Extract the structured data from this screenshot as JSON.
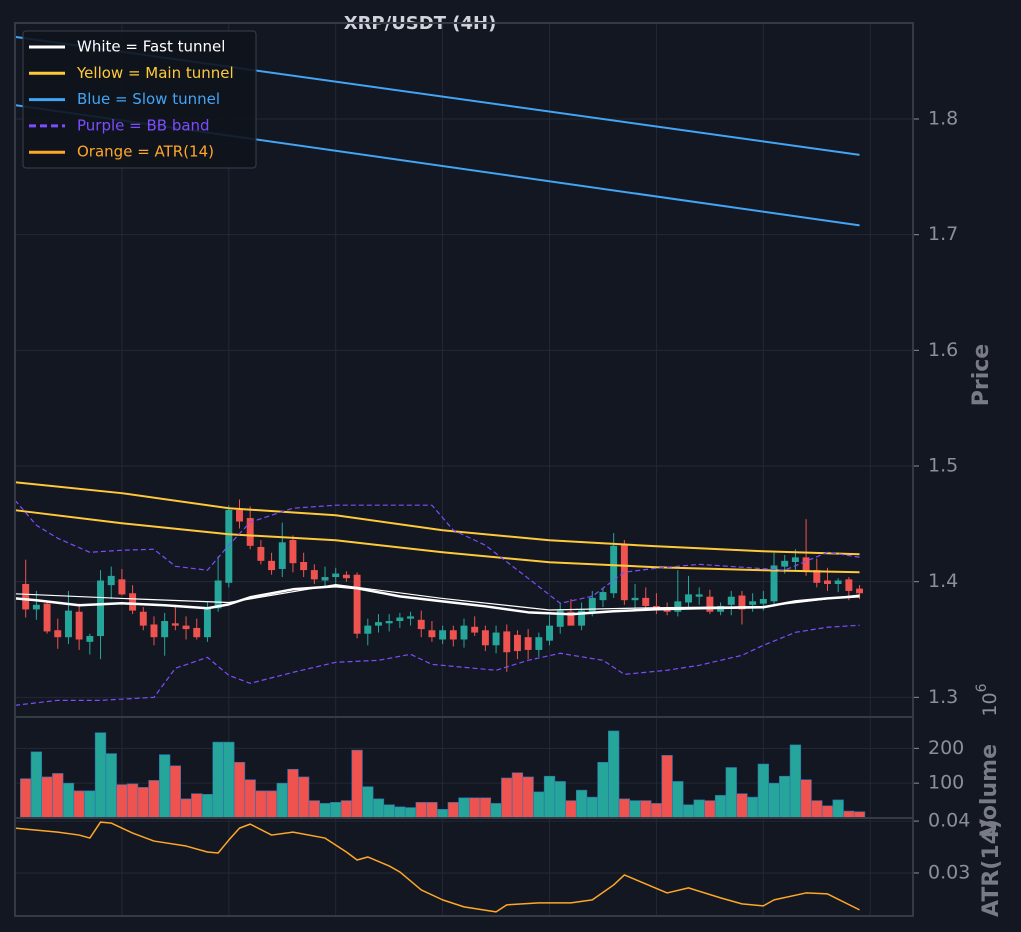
{
  "chart_data": [
    {
      "type": "candlestick",
      "title": "XRP/USDT (4H)",
      "y_label": "Price",
      "xlim": [
        -1,
        83
      ],
      "xticks": [
        9,
        19,
        29,
        39,
        49,
        59,
        69,
        79
      ],
      "ylim": [
        1.283,
        1.883
      ],
      "yticks": [
        1.3,
        1.4,
        1.5,
        1.6,
        1.7,
        1.8
      ],
      "grid": true,
      "up_color": "#26a69a",
      "down_color": "#ef5350",
      "legend": "upper left",
      "open": [
        1.398,
        1.376,
        1.381,
        1.358,
        1.352,
        1.374,
        1.348,
        1.353,
        1.397,
        1.402,
        1.39,
        1.374,
        1.363,
        1.352,
        1.364,
        1.362,
        1.36,
        1.352,
        1.377,
        1.399,
        1.462,
        1.455,
        1.43,
        1.418,
        1.411,
        1.436,
        1.417,
        1.41,
        1.401,
        1.404,
        1.406,
        1.406,
        1.355,
        1.362,
        1.364,
        1.366,
        1.368,
        1.367,
        1.358,
        1.35,
        1.358,
        1.35,
        1.361,
        1.358,
        1.345,
        1.357,
        1.354,
        1.352,
        1.341,
        1.349,
        1.361,
        1.374,
        1.362,
        1.374,
        1.384,
        1.39,
        1.432,
        1.384,
        1.386,
        1.379,
        1.378,
        1.374,
        1.382,
        1.387,
        1.387,
        1.374,
        1.38,
        1.388,
        1.38,
        1.381,
        1.383,
        1.413,
        1.417,
        1.421,
        1.41,
        1.401,
        1.398,
        1.402,
        1.394
      ],
      "high": [
        1.419,
        1.392,
        1.383,
        1.368,
        1.392,
        1.381,
        1.355,
        1.41,
        1.413,
        1.411,
        1.397,
        1.378,
        1.37,
        1.373,
        1.38,
        1.37,
        1.368,
        1.383,
        1.422,
        1.466,
        1.471,
        1.465,
        1.436,
        1.425,
        1.451,
        1.44,
        1.425,
        1.415,
        1.413,
        1.412,
        1.409,
        1.408,
        1.368,
        1.372,
        1.372,
        1.373,
        1.374,
        1.375,
        1.366,
        1.362,
        1.362,
        1.368,
        1.37,
        1.362,
        1.362,
        1.363,
        1.358,
        1.359,
        1.356,
        1.371,
        1.382,
        1.385,
        1.382,
        1.392,
        1.395,
        1.442,
        1.436,
        1.398,
        1.395,
        1.39,
        1.382,
        1.41,
        1.405,
        1.395,
        1.393,
        1.382,
        1.392,
        1.392,
        1.39,
        1.392,
        1.425,
        1.423,
        1.428,
        1.454,
        1.42,
        1.412,
        1.403,
        1.404,
        1.397
      ],
      "low": [
        1.369,
        1.367,
        1.355,
        1.342,
        1.346,
        1.341,
        1.337,
        1.333,
        1.385,
        1.388,
        1.372,
        1.358,
        1.345,
        1.336,
        1.358,
        1.35,
        1.35,
        1.348,
        1.374,
        1.395,
        1.446,
        1.428,
        1.415,
        1.406,
        1.404,
        1.408,
        1.404,
        1.398,
        1.396,
        1.398,
        1.4,
        1.351,
        1.345,
        1.356,
        1.357,
        1.36,
        1.362,
        1.352,
        1.348,
        1.346,
        1.344,
        1.343,
        1.353,
        1.34,
        1.338,
        1.322,
        1.333,
        1.333,
        1.335,
        1.345,
        1.355,
        1.362,
        1.358,
        1.37,
        1.378,
        1.386,
        1.38,
        1.376,
        1.375,
        1.372,
        1.371,
        1.37,
        1.378,
        1.38,
        1.372,
        1.371,
        1.371,
        1.363,
        1.374,
        1.375,
        1.38,
        1.407,
        1.41,
        1.405,
        1.395,
        1.392,
        1.391,
        1.384,
        1.385
      ],
      "close": [
        1.376,
        1.38,
        1.357,
        1.352,
        1.375,
        1.35,
        1.353,
        1.401,
        1.405,
        1.389,
        1.375,
        1.362,
        1.352,
        1.366,
        1.362,
        1.359,
        1.352,
        1.377,
        1.401,
        1.462,
        1.452,
        1.431,
        1.418,
        1.41,
        1.434,
        1.416,
        1.41,
        1.402,
        1.404,
        1.407,
        1.403,
        1.355,
        1.362,
        1.365,
        1.366,
        1.369,
        1.37,
        1.359,
        1.352,
        1.358,
        1.35,
        1.362,
        1.356,
        1.345,
        1.356,
        1.339,
        1.34,
        1.341,
        1.352,
        1.362,
        1.375,
        1.362,
        1.375,
        1.386,
        1.391,
        1.431,
        1.384,
        1.386,
        1.379,
        1.376,
        1.374,
        1.383,
        1.389,
        1.389,
        1.374,
        1.379,
        1.387,
        1.376,
        1.383,
        1.385,
        1.414,
        1.418,
        1.421,
        1.409,
        1.399,
        1.398,
        1.401,
        1.392,
        1.39
      ],
      "series": [
        {
          "name": "White = Fast tunnel",
          "color": "#ffffff",
          "width": 2.5,
          "x": [
            -1,
            1,
            5,
            9,
            13,
            17,
            19,
            21,
            25,
            29,
            31,
            35,
            39,
            43,
            47,
            51,
            55,
            59,
            63,
            69,
            72,
            75,
            78
          ],
          "values": [
            1.3856,
            1.3839,
            1.3796,
            1.3813,
            1.3796,
            1.377,
            1.3804,
            1.3865,
            1.3934,
            1.396,
            1.3943,
            1.3873,
            1.383,
            1.3787,
            1.3735,
            1.3718,
            1.3744,
            1.3761,
            1.377,
            1.3779,
            1.383,
            1.3856,
            1.3874
          ]
        },
        {
          "color": "#ffffff",
          "width": 1.2,
          "x": [
            -1,
            9,
            19,
            29,
            39,
            49,
            59,
            69,
            78
          ],
          "values": [
            1.3895,
            1.3855,
            1.382,
            1.3975,
            1.3855,
            1.3755,
            1.3775,
            1.3785,
            1.3885
          ]
        },
        {
          "name": "Yellow = Main tunnel",
          "color": "#ffca3a",
          "width": 2,
          "x": [
            -1,
            9,
            19,
            29,
            39,
            49,
            59,
            69,
            78
          ],
          "values": [
            1.486,
            1.4765,
            1.4635,
            1.4574,
            1.4445,
            1.4358,
            1.4306,
            1.4263,
            1.4237
          ]
        },
        {
          "color": "#ffca3a",
          "width": 2,
          "x": [
            -1,
            9,
            19,
            29,
            39,
            49,
            59,
            69,
            78
          ],
          "values": [
            1.4618,
            1.4505,
            1.441,
            1.4358,
            1.4254,
            1.4168,
            1.4125,
            1.4099,
            1.4081
          ]
        },
        {
          "name": "Blue = Slow tunnel",
          "color": "#42a5f5",
          "width": 2,
          "x": [
            -1,
            78
          ],
          "values": [
            1.871,
            1.769
          ]
        },
        {
          "color": "#42a5f5",
          "width": 2,
          "x": [
            -1,
            78
          ],
          "values": [
            1.812,
            1.708
          ]
        },
        {
          "name": "Purple = BB band",
          "color": "#7c4dff",
          "width": 1.2,
          "dashed": true,
          "x": [
            -1,
            1,
            3,
            6,
            9,
            12,
            14,
            17,
            19,
            21,
            25,
            29,
            35,
            38,
            40,
            43,
            47,
            50,
            53,
            56,
            59,
            63,
            67,
            71,
            75,
            78
          ],
          "values": [
            1.4704,
            1.4488,
            1.4375,
            1.4254,
            1.4272,
            1.428,
            1.4133,
            1.4099,
            1.4315,
            1.4514,
            1.4635,
            1.4661,
            1.4661,
            1.4661,
            1.4445,
            1.4315,
            1.4029,
            1.3813,
            1.3874,
            1.4082,
            1.4116,
            1.415,
            1.4125,
            1.4099,
            1.4254,
            1.4211
          ]
        },
        {
          "color": "#7c4dff",
          "width": 1.2,
          "dashed": true,
          "x": [
            -1,
            3,
            7,
            12,
            14,
            17,
            19,
            21,
            25,
            29,
            33,
            36,
            38,
            44,
            47,
            50,
            54,
            56,
            60,
            63,
            67,
            69,
            72,
            75,
            78
          ],
          "values": [
            1.2931,
            1.2974,
            1.2974,
            1.3,
            1.3251,
            1.3346,
            1.319,
            1.3121,
            1.3216,
            1.3303,
            1.332,
            1.3372,
            1.3285,
            1.3234,
            1.332,
            1.3381,
            1.332,
            1.3199,
            1.3234,
            1.3277,
            1.3363,
            1.345,
            1.3562,
            1.3606,
            1.3623
          ]
        }
      ]
    },
    {
      "type": "bar",
      "y_label": "Volume",
      "offset_text": {
        "base": "10",
        "exponent": "6"
      },
      "ylim": [
        0,
        290
      ],
      "yticks": [
        100,
        200
      ],
      "grid": true,
      "values": [
        113,
        190,
        118,
        128,
        100,
        78,
        78,
        245,
        185,
        96,
        98,
        88,
        108,
        182,
        150,
        55,
        70,
        68,
        218,
        218,
        160,
        110,
        78,
        78,
        100,
        140,
        118,
        50,
        42,
        45,
        50,
        195,
        90,
        55,
        38,
        32,
        30,
        45,
        45,
        25,
        45,
        58,
        58,
        58,
        42,
        115,
        130,
        118,
        75,
        120,
        105,
        50,
        80,
        60,
        160,
        250,
        55,
        50,
        50,
        42,
        180,
        105,
        38,
        52,
        50,
        65,
        145,
        70,
        60,
        155,
        100,
        120,
        210,
        110,
        50,
        35,
        52,
        20,
        18
      ]
    },
    {
      "type": "line",
      "y_label": "ATR(14)",
      "ylim": [
        0.0217,
        0.0406
      ],
      "yticks": [
        0.03,
        0.04
      ],
      "grid": true,
      "series": [
        {
          "name": "Orange = ATR(14)",
          "color": "#ffa726",
          "width": 1.5,
          "x": [
            -1,
            1,
            3,
            5,
            6,
            7,
            8,
            10,
            12,
            15,
            17,
            18,
            19,
            20,
            21,
            23,
            25,
            28,
            30,
            31,
            32,
            34,
            35,
            37,
            39,
            41,
            44,
            45,
            48,
            51,
            53,
            55,
            56,
            58,
            60,
            62,
            65,
            67,
            69,
            70,
            73,
            75,
            78
          ],
          "values": [
            0.03865,
            0.03827,
            0.03788,
            0.03731,
            0.03673,
            0.03981,
            0.03962,
            0.03769,
            0.03615,
            0.03519,
            0.03404,
            0.03385,
            0.03635,
            0.03865,
            0.03942,
            0.03731,
            0.03788,
            0.03673,
            0.03404,
            0.0325,
            0.03308,
            0.03135,
            0.03019,
            0.02673,
            0.02481,
            0.02346,
            0.0225,
            0.02385,
            0.02423,
            0.02423,
            0.02481,
            0.02769,
            0.02962,
            0.02788,
            0.02615,
            0.02712,
            0.02519,
            0.02404,
            0.02365,
            0.02481,
            0.02615,
            0.02596,
            0.02288
          ]
        }
      ]
    }
  ]
}
